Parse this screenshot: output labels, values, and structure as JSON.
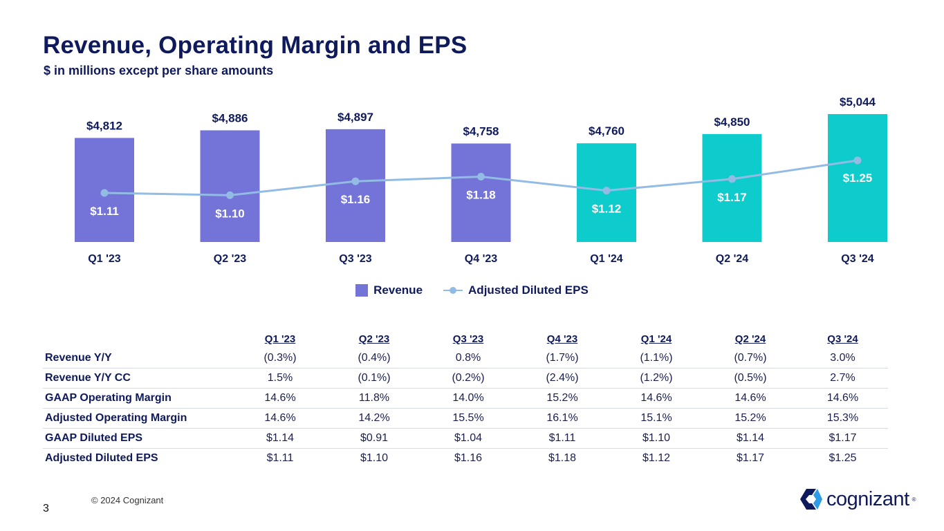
{
  "title": "Revenue, Operating Margin and EPS",
  "subtitle": "$ in millions except per share amounts",
  "chart_data": {
    "type": "bar",
    "categories": [
      "Q1 '23",
      "Q2 '23",
      "Q3 '23",
      "Q4 '23",
      "Q1 '24",
      "Q2 '24",
      "Q3 '24"
    ],
    "series": [
      {
        "name": "Revenue",
        "type": "bar",
        "values": [
          4812,
          4886,
          4897,
          4758,
          4760,
          4850,
          5044
        ],
        "labels": [
          "$4,812",
          "$4,886",
          "$4,897",
          "$4,758",
          "$4,760",
          "$4,850",
          "$5,044"
        ]
      },
      {
        "name": "Adjusted Diluted EPS",
        "type": "line",
        "values": [
          1.11,
          1.1,
          1.16,
          1.18,
          1.12,
          1.17,
          1.25
        ],
        "labels": [
          "$1.11",
          "$1.10",
          "$1.16",
          "$1.18",
          "$1.12",
          "$1.17",
          "$1.25"
        ]
      }
    ],
    "legend": [
      "Revenue",
      "Adjusted Diluted EPS"
    ],
    "legend_position": "bottom",
    "colors": {
      "bar_2023": "#7373d8",
      "bar_2024": "#0fcccc",
      "line": "#92bce4",
      "text": "#0f1a5c"
    }
  },
  "table": {
    "columns": [
      "Q1 '23",
      "Q2 '23",
      "Q3 '23",
      "Q4 '23",
      "Q1 '24",
      "Q2 '24",
      "Q3 '24"
    ],
    "rows": [
      {
        "label": "Revenue Y/Y",
        "values": [
          "(0.3%)",
          "(0.4%)",
          "0.8%",
          "(1.7%)",
          "(1.1%)",
          "(0.7%)",
          "3.0%"
        ]
      },
      {
        "label": "Revenue Y/Y CC",
        "values": [
          "1.5%",
          "(0.1%)",
          "(0.2%)",
          "(2.4%)",
          "(1.2%)",
          "(0.5%)",
          "2.7%"
        ]
      },
      {
        "label": "GAAP Operating Margin",
        "values": [
          "14.6%",
          "11.8%",
          "14.0%",
          "15.2%",
          "14.6%",
          "14.6%",
          "14.6%"
        ]
      },
      {
        "label": "Adjusted Operating Margin",
        "values": [
          "14.6%",
          "14.2%",
          "15.5%",
          "16.1%",
          "15.1%",
          "15.2%",
          "15.3%"
        ]
      },
      {
        "label": "GAAP Diluted EPS",
        "values": [
          "$1.14",
          "$0.91",
          "$1.04",
          "$1.11",
          "$1.10",
          "$1.14",
          "$1.17"
        ]
      },
      {
        "label": "Adjusted Diluted EPS",
        "values": [
          "$1.11",
          "$1.10",
          "$1.16",
          "$1.18",
          "$1.12",
          "$1.17",
          "$1.25"
        ]
      }
    ]
  },
  "footer": {
    "copyright": "© 2024 Cognizant",
    "page_number": "3",
    "logo_text": "cognizant",
    "logo_icon": "cognizant-logo-icon"
  }
}
